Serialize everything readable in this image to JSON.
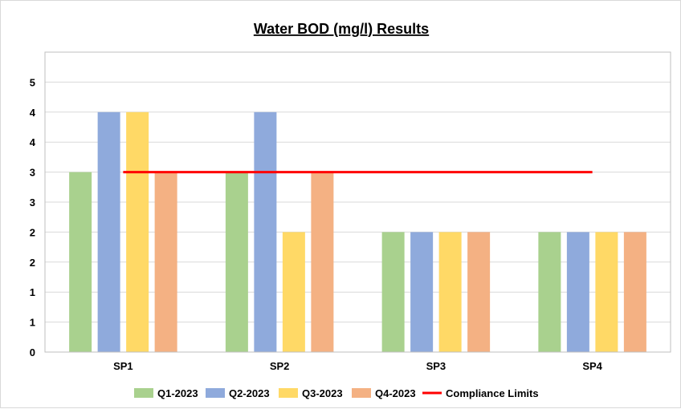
{
  "chart_data": {
    "type": "bar",
    "title": "Water BOD (mg/l) Results",
    "xlabel": "",
    "ylabel": "",
    "categories": [
      "SP1",
      "SP2",
      "SP3",
      "SP4"
    ],
    "series": [
      {
        "name": "Q1-2023",
        "color": "#a9d18e",
        "values": [
          3,
          3,
          2,
          2
        ]
      },
      {
        "name": "Q2-2023",
        "color": "#8faadc",
        "values": [
          4,
          4,
          2,
          2
        ]
      },
      {
        "name": "Q3-2023",
        "color": "#ffd966",
        "values": [
          4,
          2,
          2,
          2
        ]
      },
      {
        "name": "Q4-2023",
        "color": "#f4b183",
        "values": [
          3,
          3,
          2,
          2
        ]
      }
    ],
    "compliance_limit": {
      "name": "Compliance Limits",
      "color": "#ff0000",
      "value": 3
    },
    "ylim": [
      0,
      5
    ],
    "y_tick_labels": [
      "0",
      "1",
      "1",
      "2",
      "2",
      "3",
      "3",
      "4",
      "4",
      "5"
    ],
    "grid": true,
    "legend_position": "bottom"
  }
}
